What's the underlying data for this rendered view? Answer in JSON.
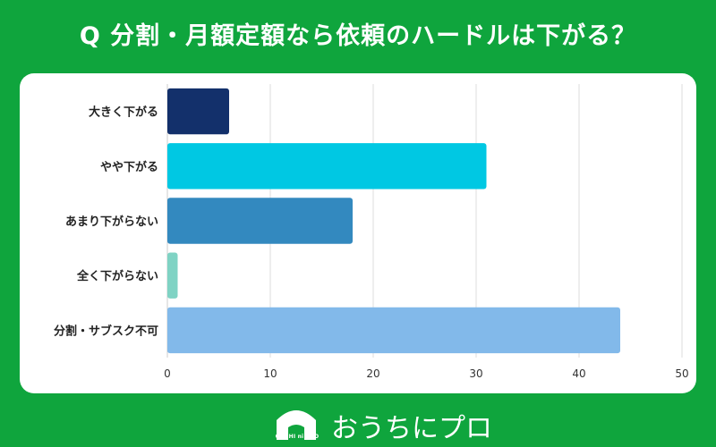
{
  "header": {
    "title": "Q 分割・月額定額なら依頼のハードルは下がる？"
  },
  "chart_data": {
    "type": "bar",
    "orientation": "horizontal",
    "title": "Q 分割・月額定額なら依頼のハードルは下がる？",
    "categories": [
      "大きく下がる",
      "やや下がる",
      "あまり下がらない",
      "全く下がらない",
      "分割・サブスク不可"
    ],
    "values": [
      6,
      31,
      18,
      1,
      44
    ],
    "colors": [
      "#13306b",
      "#00c8e3",
      "#3389bf",
      "#7fd3c4",
      "#82b9ea"
    ],
    "xlim": [
      0,
      50
    ],
    "xticks": [
      0,
      10,
      20,
      30,
      40,
      50
    ],
    "grid": true,
    "xlabel": "",
    "ylabel": ""
  },
  "footer": {
    "logo_small": "OUCHI ni PRO",
    "logo_text": "おうちにプロ",
    "logo_icon": "house-icon"
  }
}
